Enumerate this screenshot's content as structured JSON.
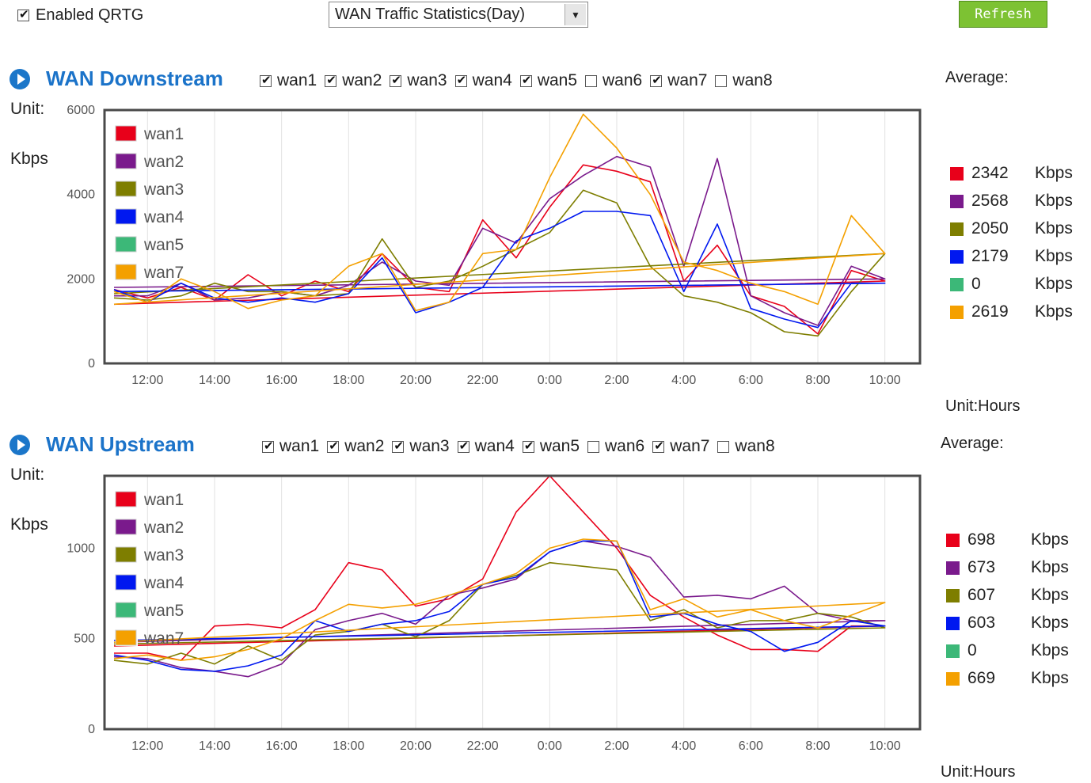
{
  "header": {
    "enable_label": "Enabled QRTG",
    "enable_checked": true,
    "select_value": "WAN Traffic Statistics(Day)",
    "refresh_label": "Refresh"
  },
  "colors": {
    "wan1": "#e8001a",
    "wan2": "#7a1a8c",
    "wan3": "#7e7e00",
    "wan4": "#0018f0",
    "wan5": "#3cb878",
    "wan7": "#f4a000"
  },
  "wans": [
    {
      "name": "wan1",
      "checked": true
    },
    {
      "name": "wan2",
      "checked": true
    },
    {
      "name": "wan3",
      "checked": true
    },
    {
      "name": "wan4",
      "checked": true
    },
    {
      "name": "wan5",
      "checked": true
    },
    {
      "name": "wan6",
      "checked": false
    },
    {
      "name": "wan7",
      "checked": true
    },
    {
      "name": "wan8",
      "checked": false
    }
  ],
  "downstream": {
    "title": "WAN Downstream",
    "unit_label": "Unit:",
    "unit_value": "Kbps",
    "average_label": "Average:",
    "unit_hours": "Unit:Hours",
    "averages": [
      {
        "name": "wan1",
        "value": "2342",
        "unit": "Kbps"
      },
      {
        "name": "wan2",
        "value": "2568",
        "unit": "Kbps"
      },
      {
        "name": "wan3",
        "value": "2050",
        "unit": "Kbps"
      },
      {
        "name": "wan4",
        "value": "2179",
        "unit": "Kbps"
      },
      {
        "name": "wan5",
        "value": "0",
        "unit": "Kbps"
      },
      {
        "name": "wan7",
        "value": "2619",
        "unit": "Kbps"
      }
    ]
  },
  "upstream": {
    "title": "WAN Upstream",
    "unit_label": "Unit:",
    "unit_value": "Kbps",
    "average_label": "Average:",
    "unit_hours": "Unit:Hours",
    "averages": [
      {
        "name": "wan1",
        "value": "698",
        "unit": "Kbps"
      },
      {
        "name": "wan2",
        "value": "673",
        "unit": "Kbps"
      },
      {
        "name": "wan3",
        "value": "607",
        "unit": "Kbps"
      },
      {
        "name": "wan4",
        "value": "603",
        "unit": "Kbps"
      },
      {
        "name": "wan5",
        "value": "0",
        "unit": "Kbps"
      },
      {
        "name": "wan7",
        "value": "669",
        "unit": "Kbps"
      }
    ]
  },
  "chart_data": [
    {
      "type": "line",
      "ylim": [
        0,
        6000
      ],
      "yticks": [
        "0",
        "2000",
        "4000",
        "6000"
      ],
      "xticks": [
        "12:00",
        "14:00",
        "16:00",
        "18:00",
        "20:00",
        "22:00",
        "0:00",
        "2:00",
        "4:00",
        "6:00",
        "8:00",
        "10:00"
      ],
      "legend": [
        "wan1",
        "wan2",
        "wan3",
        "wan4",
        "wan5",
        "wan7"
      ],
      "legend_position": "top-left",
      "x": [
        11,
        12,
        13,
        14,
        15,
        16,
        17,
        18,
        19,
        20,
        21,
        22,
        23,
        0,
        1,
        2,
        3,
        4,
        5,
        6,
        7,
        8,
        9,
        10,
        11
      ],
      "series": [
        {
          "name": "wan1",
          "values": [
            1750,
            1550,
            1800,
            1500,
            2100,
            1600,
            1950,
            1700,
            2600,
            1800,
            1700,
            3400,
            2500,
            3700,
            4700,
            4550,
            4300,
            1950,
            2800,
            1600,
            1350,
            700,
            2200,
            1950,
            1400
          ]
        },
        {
          "name": "wan2",
          "values": [
            1600,
            1600,
            1900,
            1500,
            1550,
            1700,
            1600,
            1850,
            2400,
            1950,
            1850,
            3200,
            2850,
            3900,
            4450,
            4900,
            4650,
            2300,
            4850,
            1600,
            1200,
            900,
            2300,
            2000,
            1800
          ]
        },
        {
          "name": "wan3",
          "values": [
            1550,
            1500,
            1600,
            1900,
            1700,
            1700,
            1600,
            1650,
            2950,
            1800,
            1950,
            2300,
            2700,
            3100,
            4100,
            3800,
            2300,
            1600,
            1450,
            1200,
            750,
            650,
            1700,
            2600,
            1650
          ]
        },
        {
          "name": "wan4",
          "values": [
            1750,
            1450,
            1900,
            1550,
            1450,
            1550,
            1450,
            1650,
            2500,
            1200,
            1450,
            1800,
            2900,
            3200,
            3600,
            3600,
            3500,
            1700,
            3300,
            1300,
            1050,
            850,
            1900,
            1900,
            1700
          ]
        },
        {
          "name": "wan5",
          "values": [
            0,
            0,
            0,
            0,
            0,
            0,
            0,
            0,
            0,
            0,
            0,
            0,
            0,
            0,
            0,
            0,
            0,
            0,
            0,
            0,
            0,
            0,
            0,
            0,
            0
          ]
        },
        {
          "name": "wan7",
          "values": [
            1700,
            1450,
            2000,
            1700,
            1300,
            1500,
            1600,
            2300,
            2600,
            1250,
            1450,
            2600,
            2700,
            4400,
            5900,
            5100,
            4000,
            2400,
            2200,
            1900,
            1700,
            1400,
            3500,
            2600,
            1400
          ]
        }
      ]
    },
    {
      "type": "line",
      "ylim": [
        0,
        1400
      ],
      "yticks": [
        "0",
        "500",
        "1000"
      ],
      "xticks": [
        "12:00",
        "14:00",
        "16:00",
        "18:00",
        "20:00",
        "22:00",
        "0:00",
        "2:00",
        "4:00",
        "6:00",
        "8:00",
        "10:00"
      ],
      "legend": [
        "wan1",
        "wan2",
        "wan3",
        "wan4",
        "wan5",
        "wan7"
      ],
      "legend_position": "top-left",
      "x": [
        11,
        12,
        13,
        14,
        15,
        16,
        17,
        18,
        19,
        20,
        21,
        22,
        23,
        0,
        1,
        2,
        3,
        4,
        5,
        6,
        7,
        8,
        9,
        10,
        11
      ],
      "series": [
        {
          "name": "wan1",
          "values": [
            420,
            420,
            380,
            570,
            580,
            560,
            660,
            920,
            880,
            680,
            720,
            830,
            1200,
            1400,
            1200,
            1000,
            740,
            620,
            520,
            440,
            440,
            430,
            570,
            570,
            460
          ]
        },
        {
          "name": "wan2",
          "values": [
            400,
            390,
            340,
            320,
            290,
            360,
            550,
            600,
            640,
            580,
            740,
            780,
            830,
            980,
            1040,
            1010,
            950,
            730,
            740,
            720,
            790,
            640,
            600,
            600,
            480
          ]
        },
        {
          "name": "wan3",
          "values": [
            380,
            360,
            420,
            360,
            460,
            380,
            520,
            540,
            580,
            510,
            600,
            800,
            850,
            920,
            900,
            880,
            600,
            660,
            560,
            600,
            600,
            640,
            620,
            560,
            470
          ]
        },
        {
          "name": "wan4",
          "values": [
            410,
            380,
            330,
            320,
            350,
            410,
            600,
            540,
            580,
            600,
            650,
            800,
            840,
            980,
            1040,
            1040,
            620,
            640,
            580,
            540,
            430,
            480,
            600,
            570,
            490
          ]
        },
        {
          "name": "wan5",
          "values": [
            0,
            0,
            0,
            0,
            0,
            0,
            0,
            0,
            0,
            0,
            0,
            0,
            0,
            0,
            0,
            0,
            0,
            0,
            0,
            0,
            0,
            0,
            0,
            0,
            0
          ]
        },
        {
          "name": "wan7",
          "values": [
            390,
            410,
            380,
            400,
            440,
            500,
            600,
            690,
            670,
            690,
            740,
            800,
            860,
            1000,
            1050,
            1040,
            660,
            720,
            620,
            660,
            600,
            560,
            630,
            700,
            480
          ]
        }
      ]
    }
  ]
}
